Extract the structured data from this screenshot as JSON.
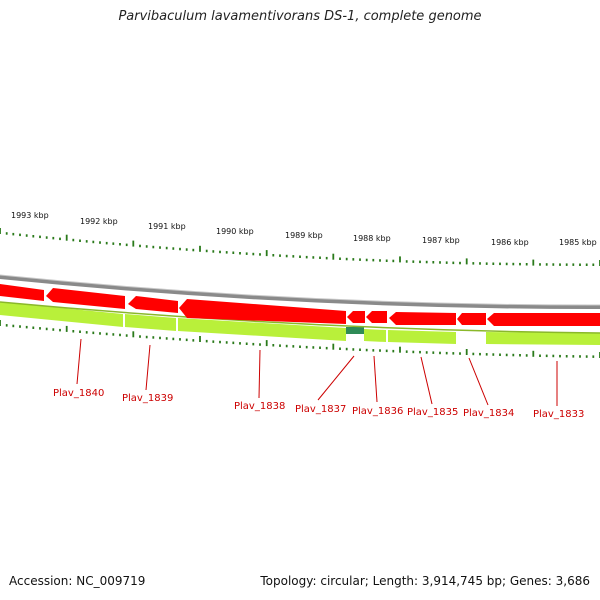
{
  "title": "Parvibaculum lavamentivorans DS-1, complete genome",
  "footer": {
    "accession": "Accession: NC_009719",
    "topology": "Topology: circular; Length: 3,914,745 bp; Genes: 3,686"
  },
  "colors": {
    "backbone": "#808080",
    "gene_forward": "#ff0000",
    "gene_lime": "#b9f03a",
    "gene_dark": "#2e8b57",
    "tick": "#2a7a1a",
    "label": "#cc0000"
  },
  "ticks": {
    "unit": "kbp",
    "labels": [
      "1993 kbp",
      "1992 kbp",
      "1991 kbp",
      "1990 kbp",
      "1989 kbp",
      "1988 kbp",
      "1987 kbp",
      "1986 kbp",
      "1985 kbp"
    ]
  },
  "genes": [
    {
      "name": "Plav_1840"
    },
    {
      "name": "Plav_1839"
    },
    {
      "name": "Plav_1838"
    },
    {
      "name": "Plav_1837"
    },
    {
      "name": "Plav_1836"
    },
    {
      "name": "Plav_1835"
    },
    {
      "name": "Plav_1834"
    },
    {
      "name": "Plav_1833"
    }
  ]
}
